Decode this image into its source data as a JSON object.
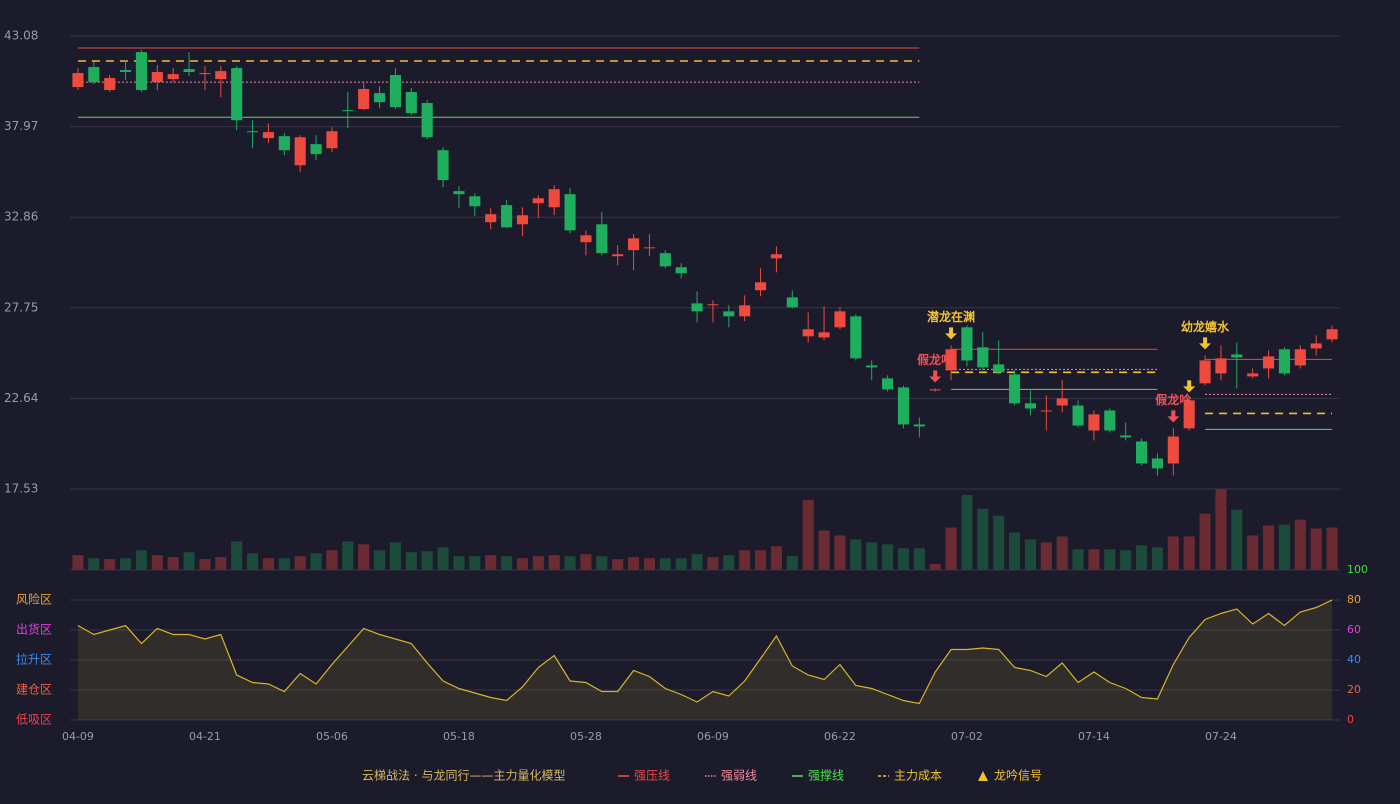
{
  "chart_data": [
    {
      "type": "candlestick",
      "title": "云梯战法 · 与龙同行——主力量化模型",
      "categories": [
        "04-09",
        null,
        null,
        null,
        null,
        null,
        null,
        null,
        "04-21",
        null,
        null,
        null,
        null,
        null,
        null,
        null,
        "05-06",
        null,
        null,
        null,
        null,
        null,
        null,
        null,
        "05-18",
        null,
        null,
        null,
        null,
        null,
        null,
        null,
        "05-28",
        null,
        null,
        null,
        null,
        null,
        null,
        null,
        "06-09",
        null,
        null,
        null,
        null,
        null,
        null,
        null,
        "06-22",
        null,
        null,
        null,
        null,
        null,
        null,
        null,
        "07-02",
        null,
        null,
        null,
        null,
        null,
        null,
        null,
        "07-14",
        null,
        null,
        null,
        null,
        null,
        null,
        null,
        "07-24",
        null,
        null,
        null,
        null,
        null,
        null,
        null
      ],
      "open": [
        40.2,
        41.33,
        40.03,
        41.16,
        42.17,
        40.48,
        40.65,
        41.21,
        40.93,
        40.65,
        41.27,
        37.71,
        37.32,
        37.43,
        35.79,
        36.98,
        36.75,
        38.9,
        38.96,
        39.86,
        40.88,
        39.92,
        39.3,
        36.64,
        34.33,
        34.04,
        32.58,
        33.54,
        32.46,
        33.65,
        33.42,
        34.16,
        31.45,
        32.46,
        30.66,
        31.0,
        31.11,
        30.83,
        30.04,
        28.0,
        27.89,
        27.55,
        27.27,
        28.74,
        30.54,
        28.34,
        26.14,
        26.08,
        26.65,
        27.27,
        24.5,
        23.77,
        23.26,
        21.17,
        23.09,
        24.22,
        26.65,
        25.52,
        24.56,
        23.99,
        22.36,
        21.91,
        22.24,
        22.24,
        20.83,
        21.96,
        20.55,
        20.21,
        19.25,
        18.97,
        20.95,
        23.49,
        24.05,
        25.12,
        23.88,
        24.33,
        25.41,
        24.5,
        25.46,
        25.97
      ],
      "high": [
        41.27,
        41.61,
        40.88,
        41.72,
        42.29,
        41.44,
        41.27,
        42.17,
        41.38,
        41.38,
        41.38,
        38.33,
        38.16,
        37.6,
        37.49,
        37.49,
        37.94,
        39.92,
        40.48,
        40.25,
        41.27,
        40.14,
        39.46,
        36.81,
        34.61,
        34.21,
        33.37,
        33.82,
        33.42,
        34.1,
        34.67,
        34.5,
        32.12,
        33.14,
        31.28,
        31.9,
        31.9,
        31.0,
        30.26,
        28.68,
        28.17,
        27.89,
        28.45,
        29.98,
        31.22,
        28.74,
        27.49,
        27.83,
        27.78,
        27.38,
        24.78,
        23.94,
        23.37,
        21.57,
        23.2,
        25.63,
        26.76,
        26.37,
        25.91,
        24.22,
        23.09,
        22.81,
        23.66,
        22.53,
        21.96,
        22.07,
        21.28,
        20.38,
        19.53,
        20.95,
        22.64,
        25.07,
        25.63,
        25.8,
        24.33,
        25.35,
        25.52,
        25.63,
        26.2,
        26.76
      ],
      "low": [
        40.03,
        40.37,
        39.92,
        40.59,
        39.92,
        40.03,
        40.48,
        40.82,
        40.03,
        39.63,
        37.77,
        36.75,
        37.04,
        36.36,
        35.4,
        36.08,
        36.53,
        37.88,
        38.9,
        39.01,
        38.96,
        38.62,
        37.26,
        34.55,
        33.37,
        32.92,
        32.18,
        32.24,
        31.79,
        32.8,
        32.97,
        31.96,
        30.71,
        30.71,
        30.15,
        29.87,
        30.66,
        29.98,
        29.41,
        26.93,
        26.93,
        26.65,
        26.99,
        28.4,
        29.75,
        27.72,
        25.8,
        25.91,
        26.54,
        24.78,
        23.66,
        23.03,
        20.95,
        20.44,
        23.03,
        23.66,
        24.45,
        24.22,
        23.99,
        22.24,
        21.68,
        20.83,
        21.85,
        21.0,
        20.27,
        20.72,
        20.27,
        18.86,
        18.29,
        18.29,
        20.83,
        23.37,
        23.66,
        23.2,
        23.77,
        23.77,
        23.94,
        24.33,
        25.07,
        25.8
      ],
      "close": [
        40.99,
        40.48,
        40.71,
        41.05,
        40.03,
        41.05,
        40.93,
        41.05,
        40.99,
        41.1,
        38.33,
        37.66,
        37.66,
        36.64,
        37.37,
        36.42,
        37.71,
        38.84,
        40.09,
        39.35,
        39.07,
        38.73,
        37.37,
        34.95,
        34.16,
        33.48,
        33.03,
        32.29,
        32.97,
        33.93,
        34.44,
        32.12,
        31.84,
        30.83,
        30.77,
        31.67,
        31.16,
        30.09,
        29.7,
        27.55,
        27.95,
        27.27,
        27.89,
        29.19,
        30.77,
        27.78,
        26.54,
        26.37,
        27.55,
        24.9,
        24.39,
        23.15,
        21.17,
        21.06,
        23.15,
        25.41,
        24.78,
        24.39,
        24.11,
        22.36,
        22.07,
        21.96,
        22.64,
        21.11,
        21.74,
        20.83,
        20.44,
        18.97,
        18.69,
        20.49,
        22.53,
        24.78,
        24.9,
        24.95,
        24.05,
        25.01,
        24.05,
        25.41,
        25.74,
        26.54
      ],
      "ylim": [
        17.53,
        43.08
      ],
      "yticks": [
        17.53,
        22.64,
        27.75,
        32.86,
        37.97,
        43.08
      ],
      "grid": true,
      "up_color": "#ee4b3e",
      "down_color": "#1fae5e",
      "levels": [
        {
          "name": "强压线",
          "color": "#e84a4a",
          "style": "solid",
          "segments": [
            {
              "from": 0,
              "to": 53,
              "value": 42.4
            },
            {
              "from": 55,
              "to": 68,
              "value": 25.41
            },
            {
              "from": 71,
              "to": 79,
              "value": 24.84
            }
          ]
        },
        {
          "name": "强弱线",
          "color": "#f4899a",
          "style": "dotted",
          "segments": [
            {
              "from": 0,
              "to": 53,
              "value": 40.48
            },
            {
              "from": 55,
              "to": 68,
              "value": 24.28
            },
            {
              "from": 71,
              "to": 79,
              "value": 22.87
            }
          ]
        },
        {
          "name": "强撑线",
          "color": "#4ee04e",
          "style": "solid",
          "segments": [
            {
              "from": 0,
              "to": 53,
              "value": 38.5
            },
            {
              "from": 55,
              "to": 68,
              "value": 23.15
            },
            {
              "from": 71,
              "to": 79,
              "value": 20.89
            }
          ]
        },
        {
          "name": "主力成本",
          "color": "#f2c232",
          "style": "dashed",
          "segments": [
            {
              "from": 0,
              "to": 53,
              "value": 41.67
            },
            {
              "from": 55,
              "to": 68,
              "value": 24.11
            },
            {
              "from": 71,
              "to": 79,
              "value": 21.79
            }
          ]
        }
      ],
      "signal_name": "龙吟信号",
      "signal_color": "#f2c232",
      "signals": [
        {
          "index": 54,
          "label": "假龙吟",
          "color": "#f0505a"
        },
        {
          "index": 55,
          "label": "潜龙在渊",
          "color": "#f2c232"
        },
        {
          "index": 69,
          "label": "假龙吟",
          "color": "#f0505a"
        },
        {
          "index": 70,
          "color": "#f2c232"
        },
        {
          "index": 71,
          "label": "幼龙嬉水",
          "color": "#f2c232"
        }
      ]
    },
    {
      "type": "volume",
      "values": [
        15,
        12,
        11,
        12,
        20,
        15,
        13,
        18,
        11,
        13,
        29,
        17,
        12,
        12,
        14,
        17,
        20,
        29,
        26,
        20,
        28,
        18,
        19,
        23,
        14,
        14,
        15,
        14,
        12,
        14,
        15,
        14,
        16,
        14,
        11,
        13,
        12,
        12,
        12,
        16,
        13,
        15,
        20,
        20,
        24,
        14,
        71,
        40,
        35,
        31,
        28,
        26,
        22,
        22,
        6,
        43,
        76,
        62,
        55,
        38,
        31,
        28,
        34,
        21,
        21,
        21,
        20,
        25,
        23,
        34,
        34,
        57,
        82,
        61,
        35,
        45,
        46,
        51,
        42,
        43
      ],
      "ylim": [
        0,
        82
      ],
      "up_color": "#6b2b33",
      "down_color": "#1c4a3b"
    },
    {
      "type": "line",
      "values": [
        63,
        57,
        60,
        63,
        51,
        61,
        57,
        57,
        54,
        57,
        30,
        25,
        24,
        19,
        31,
        24,
        37,
        49,
        61,
        57,
        54,
        51,
        38,
        26,
        21,
        18,
        15,
        13,
        22,
        35,
        43,
        26,
        25,
        19,
        19,
        33,
        29,
        21,
        17,
        12,
        19,
        16,
        26,
        41,
        56,
        36,
        30,
        27,
        37,
        23,
        21,
        17,
        13,
        11,
        32,
        47,
        47,
        48,
        47,
        35,
        33,
        29,
        38,
        25,
        32,
        25,
        21,
        15,
        14,
        37,
        55,
        67,
        71,
        74,
        64,
        71,
        63,
        72,
        75,
        80
      ],
      "color": "#d9b526",
      "ylim": [
        0,
        100
      ],
      "yticks": [
        0,
        20,
        40,
        60,
        80,
        100
      ],
      "tick_colors": [
        "#f04050",
        "#f06040",
        "#3a8ef0",
        "#e040e0",
        "#f0a030",
        "#40e040"
      ],
      "zones": [
        {
          "value": 0,
          "label": "低吸区",
          "color": "#f04050"
        },
        {
          "value": 20,
          "label": "建仓区",
          "color": "#f06040"
        },
        {
          "value": 40,
          "label": "拉升区",
          "color": "#3a8ef0"
        },
        {
          "value": 60,
          "label": "出货区",
          "color": "#e040e0"
        },
        {
          "value": 80,
          "label": "风险区",
          "color": "#f0a030"
        }
      ]
    }
  ]
}
